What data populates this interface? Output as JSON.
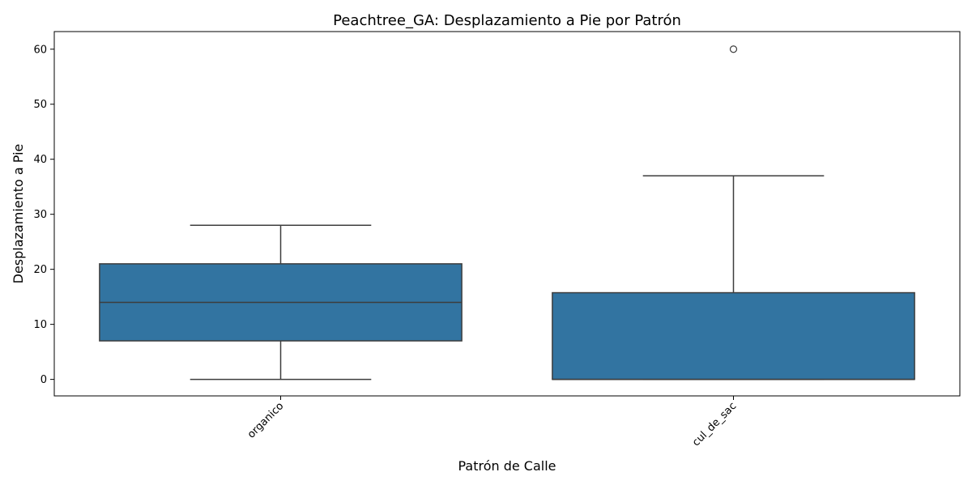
{
  "chart_data": {
    "type": "box",
    "title": "Peachtree_GA: Desplazamiento a Pie por Patrón",
    "xlabel": "Patrón de Calle",
    "ylabel": "Desplazamiento a Pie",
    "ylim": [
      -3,
      63.2
    ],
    "yticks": [
      0,
      10,
      20,
      30,
      40,
      50,
      60
    ],
    "categories": [
      "organico",
      "cul_de_sac"
    ],
    "box_color": "#3274a1",
    "edge_color": "#3d3d3d",
    "boxes": [
      {
        "category": "organico",
        "whisker_low": 0,
        "q1": 7,
        "median": 14,
        "q3": 21,
        "whisker_high": 28,
        "outliers": []
      },
      {
        "category": "cul_de_sac",
        "whisker_low": 0,
        "q1": 0,
        "median": 0,
        "q3": 15.75,
        "whisker_high": 37,
        "outliers": [
          60
        ]
      }
    ],
    "grid": false,
    "legend": "none"
  }
}
